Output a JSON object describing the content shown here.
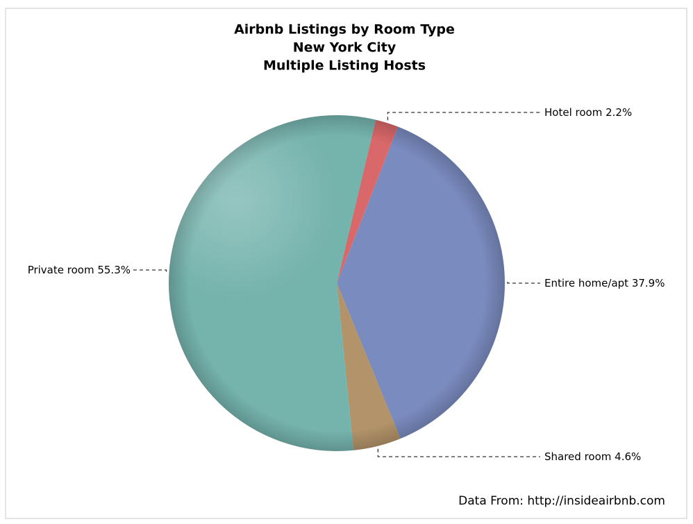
{
  "chart_data": {
    "type": "pie",
    "title": "Airbnb Listings by Room Type",
    "subtitle": [
      "New York City",
      "Multiple Listing Hosts"
    ],
    "categories": [
      "Hotel room",
      "Entire home/apt",
      "Shared room",
      "Private room"
    ],
    "values": [
      2.2,
      37.9,
      4.6,
      55.3
    ],
    "value_labels": [
      "2.2%",
      "37.9%",
      "4.6%",
      "55.3%"
    ],
    "colors": [
      "#d9686a",
      "#7a8bbf",
      "#b3946a",
      "#75b3ad"
    ],
    "source": "Data From: http://insideairbnb.com"
  }
}
